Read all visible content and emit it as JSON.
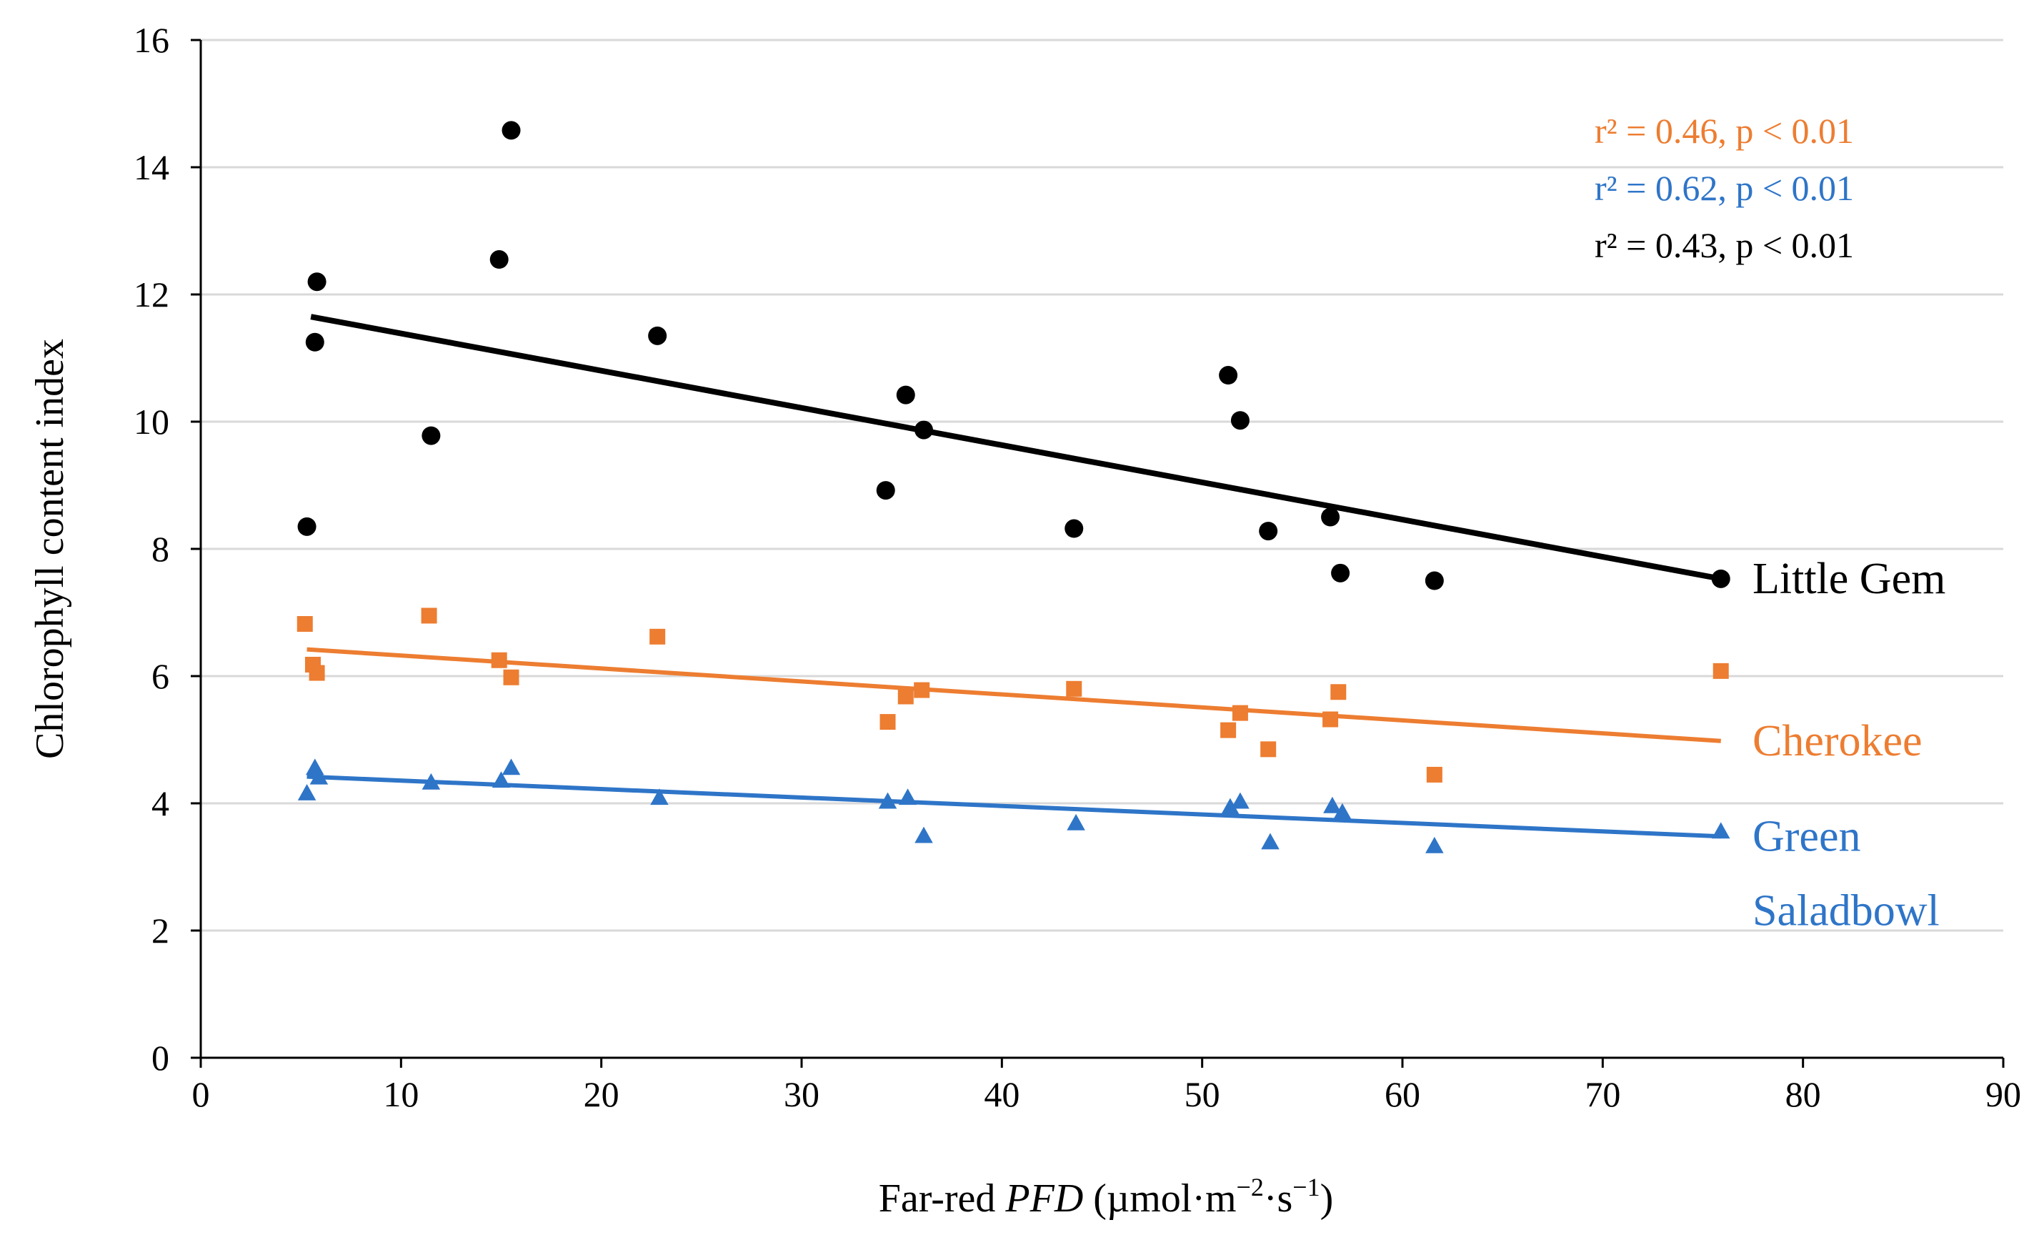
{
  "chart_data": {
    "type": "scatter",
    "xlabel": "Far-red PFD (µmol·m⁻²·s⁻¹)",
    "xlabel_parts": {
      "before": "Far-red ",
      "italic": "PFD",
      "after": " (µmol·m",
      "sup1": "−2",
      "mid": "·s",
      "sup2": "−1",
      "end": ")"
    },
    "ylabel": "Chlorophyll content index",
    "xlim": [
      0,
      90
    ],
    "ylim": [
      0,
      16
    ],
    "x_ticks": [
      0,
      10,
      20,
      30,
      40,
      50,
      60,
      70,
      80,
      90
    ],
    "y_ticks": [
      0,
      2,
      4,
      6,
      8,
      10,
      12,
      14,
      16
    ],
    "grid": "horizontal",
    "series": [
      {
        "name": "Little Gem",
        "label_lines": [
          "Little Gem"
        ],
        "color": "#000000",
        "marker": "circle",
        "points": [
          [
            5.3,
            8.35
          ],
          [
            5.7,
            11.25
          ],
          [
            5.8,
            12.2
          ],
          [
            11.5,
            9.78
          ],
          [
            14.9,
            12.55
          ],
          [
            15.5,
            14.58
          ],
          [
            22.8,
            11.35
          ],
          [
            34.2,
            8.92
          ],
          [
            35.2,
            10.42
          ],
          [
            36.1,
            9.87
          ],
          [
            43.6,
            8.32
          ],
          [
            51.3,
            10.73
          ],
          [
            51.9,
            10.02
          ],
          [
            53.3,
            8.28
          ],
          [
            56.4,
            8.5
          ],
          [
            56.9,
            7.62
          ],
          [
            61.6,
            7.5
          ],
          [
            75.9,
            7.53
          ]
        ],
        "trend": {
          "x": [
            5.5,
            75.9
          ],
          "y": [
            11.65,
            7.53
          ]
        },
        "stat": "r² = 0.43, p < 0.01"
      },
      {
        "name": "Cherokee",
        "label_lines": [
          "Cherokee"
        ],
        "color": "#ed7d31",
        "marker": "square",
        "points": [
          [
            5.2,
            6.82
          ],
          [
            5.6,
            6.18
          ],
          [
            5.8,
            6.05
          ],
          [
            11.4,
            6.95
          ],
          [
            14.9,
            6.25
          ],
          [
            15.5,
            5.98
          ],
          [
            22.8,
            6.62
          ],
          [
            34.3,
            5.28
          ],
          [
            35.2,
            5.68
          ],
          [
            36.0,
            5.78
          ],
          [
            43.6,
            5.8
          ],
          [
            51.3,
            5.15
          ],
          [
            51.9,
            5.42
          ],
          [
            53.3,
            4.85
          ],
          [
            56.4,
            5.32
          ],
          [
            56.8,
            5.75
          ],
          [
            61.6,
            4.45
          ],
          [
            75.9,
            6.08
          ]
        ],
        "trend": {
          "x": [
            5.3,
            75.9
          ],
          "y": [
            6.42,
            4.98
          ]
        },
        "stat": "r² = 0.46, p < 0.01"
      },
      {
        "name": "Green Saladbowl",
        "label_lines": [
          "Green",
          "Saladbowl"
        ],
        "color": "#2e75c8",
        "marker": "triangle",
        "points": [
          [
            5.3,
            4.15
          ],
          [
            5.7,
            4.55
          ],
          [
            5.9,
            4.4
          ],
          [
            11.5,
            4.32
          ],
          [
            15.0,
            4.35
          ],
          [
            15.5,
            4.55
          ],
          [
            22.9,
            4.08
          ],
          [
            34.3,
            4.02
          ],
          [
            35.3,
            4.08
          ],
          [
            36.1,
            3.48
          ],
          [
            43.7,
            3.68
          ],
          [
            51.4,
            3.93
          ],
          [
            51.9,
            4.02
          ],
          [
            53.4,
            3.38
          ],
          [
            56.5,
            3.95
          ],
          [
            57.0,
            3.85
          ],
          [
            61.6,
            3.32
          ],
          [
            75.9,
            3.55
          ]
        ],
        "trend": {
          "x": [
            5.3,
            75.9
          ],
          "y": [
            4.42,
            3.48
          ]
        },
        "stat": "r² = 0.62, p < 0.01"
      }
    ],
    "stats_order": [
      "Cherokee",
      "Green Saladbowl",
      "Little Gem"
    ]
  }
}
